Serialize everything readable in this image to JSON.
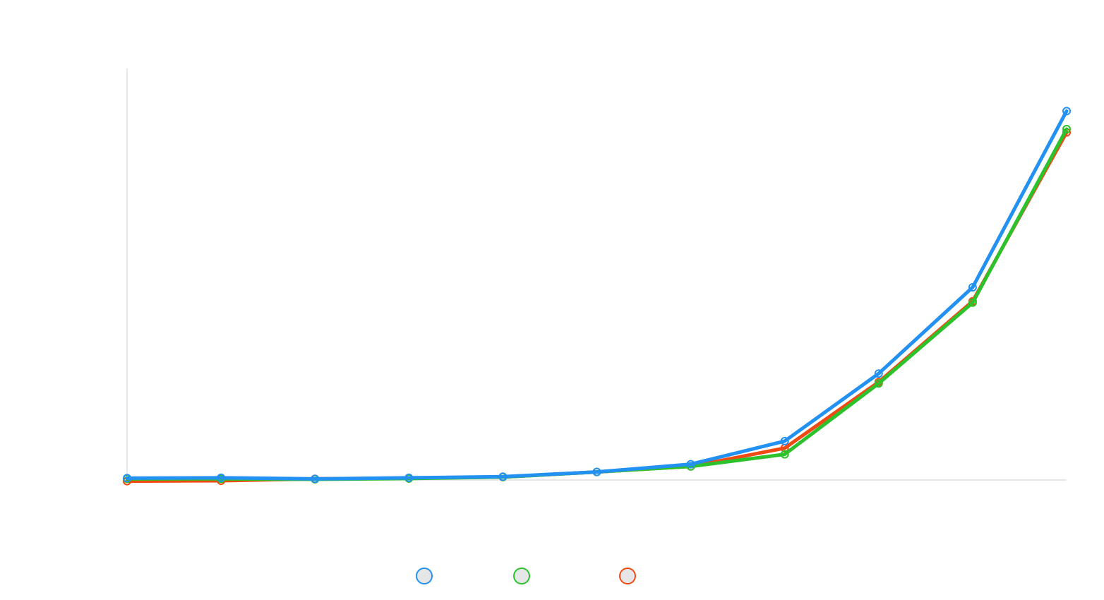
{
  "chart_data": {
    "type": "line",
    "title": "",
    "xlabel": "",
    "ylabel": "",
    "x": [
      0,
      1,
      2,
      3,
      4,
      5,
      6,
      7,
      8,
      9,
      10
    ],
    "ylim": [
      0,
      100
    ],
    "grid": false,
    "legend_position": "bottom-center",
    "series": [
      {
        "color": "#f04a14",
        "values": [
          -0.3,
          -0.2,
          0.3,
          0.5,
          0.8,
          2.2,
          3.7,
          8.7,
          26.7,
          48.7,
          94.7
        ]
      },
      {
        "color": "#2bc22b",
        "values": [
          0.3,
          0.3,
          0.2,
          0.4,
          0.8,
          2.2,
          3.7,
          7.0,
          26.3,
          48.3,
          95.6
        ]
      },
      {
        "color": "#2391f2",
        "values": [
          0.5,
          0.6,
          0.3,
          0.6,
          0.9,
          2.2,
          4.3,
          10.6,
          29.0,
          52.5,
          100.5
        ]
      }
    ],
    "legend": [
      {
        "color": "#2391f2",
        "label": ""
      },
      {
        "color": "#2bc22b",
        "label": ""
      },
      {
        "color": "#f04a14",
        "label": ""
      }
    ]
  }
}
